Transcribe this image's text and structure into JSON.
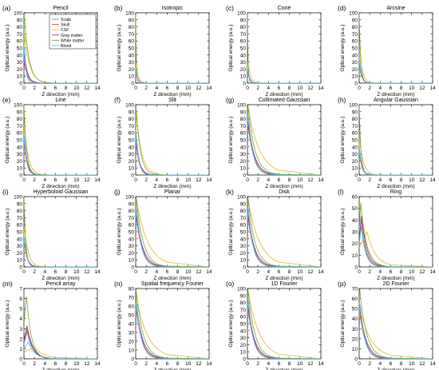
{
  "figure": {
    "x_axis_label": "Z direction (mm)",
    "y_axis_label": "Optical energy (a.u.)",
    "legend": [
      "Scalp",
      "Skull",
      "CSF",
      "Gray matter",
      "White matter",
      "Blood"
    ],
    "series_colors": [
      "#4d96d6",
      "#d95319",
      "#edb120",
      "#7e2f8e",
      "#77ac30",
      "#4dbeee"
    ]
  },
  "chart_data": [
    {
      "type": "line",
      "panel": "(a)",
      "title": "Pencil",
      "xlim": [
        0,
        14
      ],
      "ylim": [
        0,
        100
      ],
      "yticks": [
        0,
        10,
        20,
        30,
        40,
        50,
        60,
        70,
        80,
        90,
        100
      ],
      "xticks": [
        0,
        2,
        4,
        6,
        8,
        10,
        12,
        14
      ],
      "legend": "top-right",
      "series": [
        {
          "name": "Scalp",
          "peak": 48,
          "peak_x": 0.1,
          "decay": 0.45
        },
        {
          "name": "Skull",
          "peak": 30,
          "peak_x": 0.1,
          "decay": 0.55
        },
        {
          "name": "CSF",
          "peak": 70,
          "peak_x": 0.1,
          "decay": 1.0
        },
        {
          "name": "Gray matter",
          "peak": 40,
          "peak_x": 0.1,
          "decay": 0.6
        },
        {
          "name": "White matter",
          "peak": 98,
          "peak_x": 0.05,
          "decay": 0.9
        },
        {
          "name": "Blood",
          "peak": 55,
          "peak_x": 0.1,
          "decay": 0.3
        }
      ]
    },
    {
      "type": "line",
      "panel": "(b)",
      "title": "Isotropic",
      "xlim": [
        0,
        14
      ],
      "ylim": [
        0,
        100
      ],
      "yticks": [
        0,
        10,
        20,
        30,
        40,
        50,
        60,
        70,
        80,
        90,
        100
      ],
      "xticks": [
        0,
        2,
        4,
        6,
        8,
        10,
        12,
        14
      ],
      "series": [
        {
          "name": "Scalp",
          "peak": 20,
          "peak_x": 0.05,
          "decay": 0.35
        },
        {
          "name": "Skull",
          "peak": 15,
          "peak_x": 0.05,
          "decay": 0.35
        },
        {
          "name": "CSF",
          "peak": 30,
          "peak_x": 0.05,
          "decay": 0.45
        },
        {
          "name": "Gray matter",
          "peak": 18,
          "peak_x": 0.05,
          "decay": 0.35
        },
        {
          "name": "White matter",
          "peak": 100,
          "peak_x": 0.0,
          "decay": 0.12
        },
        {
          "name": "Blood",
          "peak": 20,
          "peak_x": 0.05,
          "decay": 0.3
        }
      ]
    },
    {
      "type": "line",
      "panel": "(c)",
      "title": "Cone",
      "xlim": [
        0,
        14
      ],
      "ylim": [
        0,
        100
      ],
      "yticks": [
        0,
        10,
        20,
        30,
        40,
        50,
        60,
        70,
        80,
        90,
        100
      ],
      "xticks": [
        0,
        2,
        4,
        6,
        8,
        10,
        12,
        14
      ],
      "series": [
        {
          "name": "Scalp",
          "peak": 22,
          "peak_x": 0.05,
          "decay": 0.35
        },
        {
          "name": "Skull",
          "peak": 18,
          "peak_x": 0.05,
          "decay": 0.35
        },
        {
          "name": "CSF",
          "peak": 32,
          "peak_x": 0.05,
          "decay": 0.5
        },
        {
          "name": "Gray matter",
          "peak": 20,
          "peak_x": 0.05,
          "decay": 0.35
        },
        {
          "name": "White matter",
          "peak": 100,
          "peak_x": 0.0,
          "decay": 0.13
        },
        {
          "name": "Blood",
          "peak": 22,
          "peak_x": 0.05,
          "decay": 0.3
        }
      ]
    },
    {
      "type": "line",
      "panel": "(d)",
      "title": "Arcsine",
      "xlim": [
        0,
        14
      ],
      "ylim": [
        0,
        100
      ],
      "yticks": [
        0,
        10,
        20,
        30,
        40,
        50,
        60,
        70,
        80,
        90,
        100
      ],
      "xticks": [
        0,
        2,
        4,
        6,
        8,
        10,
        12,
        14
      ],
      "series": [
        {
          "name": "Scalp",
          "peak": 35,
          "peak_x": 0.05,
          "decay": 0.4
        },
        {
          "name": "Skull",
          "peak": 25,
          "peak_x": 0.05,
          "decay": 0.45
        },
        {
          "name": "CSF",
          "peak": 45,
          "peak_x": 0.05,
          "decay": 0.6
        },
        {
          "name": "Gray matter",
          "peak": 30,
          "peak_x": 0.05,
          "decay": 0.45
        },
        {
          "name": "White matter",
          "peak": 100,
          "peak_x": 0.0,
          "decay": 0.3
        },
        {
          "name": "Blood",
          "peak": 35,
          "peak_x": 0.05,
          "decay": 0.35
        }
      ]
    },
    {
      "type": "line",
      "panel": "(e)",
      "title": "Line",
      "xlim": [
        0,
        14
      ],
      "ylim": [
        0,
        100
      ],
      "yticks": [
        0,
        10,
        20,
        30,
        40,
        50,
        60,
        70,
        80,
        90,
        100
      ],
      "xticks": [
        0,
        2,
        4,
        6,
        8,
        10,
        12,
        14
      ],
      "series": [
        {
          "name": "Scalp",
          "peak": 60,
          "peak_x": 0.05,
          "decay": 0.5
        },
        {
          "name": "Skull",
          "peak": 45,
          "peak_x": 0.05,
          "decay": 0.55
        },
        {
          "name": "CSF",
          "peak": 75,
          "peak_x": 0.05,
          "decay": 0.75
        },
        {
          "name": "Gray matter",
          "peak": 50,
          "peak_x": 0.05,
          "decay": 0.6
        },
        {
          "name": "White matter",
          "peak": 100,
          "peak_x": 0.0,
          "decay": 0.5
        },
        {
          "name": "Blood",
          "peak": 60,
          "peak_x": 0.05,
          "decay": 0.45
        }
      ]
    },
    {
      "type": "line",
      "panel": "(f)",
      "title": "Slit",
      "xlim": [
        0,
        14
      ],
      "ylim": [
        0,
        100
      ],
      "yticks": [
        0,
        10,
        20,
        30,
        40,
        50,
        60,
        70,
        80,
        90,
        100
      ],
      "xticks": [
        0,
        2,
        4,
        6,
        8,
        10,
        12,
        14
      ],
      "series": [
        {
          "name": "Scalp",
          "peak": 60,
          "peak_x": 0.1,
          "decay": 0.55
        },
        {
          "name": "Skull",
          "peak": 45,
          "peak_x": 0.1,
          "decay": 0.6
        },
        {
          "name": "CSF",
          "peak": 90,
          "peak_x": 0.1,
          "decay": 1.0
        },
        {
          "name": "Gray matter",
          "peak": 50,
          "peak_x": 0.1,
          "decay": 0.65
        },
        {
          "name": "White matter",
          "peak": 100,
          "peak_x": 0.05,
          "decay": 0.8
        },
        {
          "name": "Blood",
          "peak": 60,
          "peak_x": 0.1,
          "decay": 0.5
        }
      ]
    },
    {
      "type": "line",
      "panel": "(g)",
      "title": "Collimated Gaussian",
      "xlim": [
        0,
        14
      ],
      "ylim": [
        0,
        100
      ],
      "yticks": [
        0,
        10,
        20,
        30,
        40,
        50,
        60,
        70,
        80,
        90,
        100
      ],
      "xticks": [
        0,
        2,
        4,
        6,
        8,
        10,
        12,
        14
      ],
      "series": [
        {
          "name": "Scalp",
          "peak": 85,
          "peak_x": 0.15,
          "decay": 1.0
        },
        {
          "name": "Skull",
          "peak": 70,
          "peak_x": 0.15,
          "decay": 1.1
        },
        {
          "name": "CSF",
          "peak": 95,
          "peak_x": 0.15,
          "decay": 2.2
        },
        {
          "name": "Gray matter",
          "peak": 75,
          "peak_x": 0.15,
          "decay": 1.2
        },
        {
          "name": "White matter",
          "peak": 100,
          "peak_x": 0.1,
          "decay": 1.3
        },
        {
          "name": "Blood",
          "peak": 85,
          "peak_x": 0.15,
          "decay": 0.9
        }
      ]
    },
    {
      "type": "line",
      "panel": "(h)",
      "title": "Angular Gaussian",
      "xlim": [
        0,
        14
      ],
      "ylim": [
        0,
        100
      ],
      "yticks": [
        0,
        10,
        20,
        30,
        40,
        50,
        60,
        70,
        80,
        90,
        100
      ],
      "xticks": [
        0,
        2,
        4,
        6,
        8,
        10,
        12,
        14
      ],
      "series": [
        {
          "name": "Scalp",
          "peak": 40,
          "peak_x": 0.05,
          "decay": 0.45
        },
        {
          "name": "Skull",
          "peak": 30,
          "peak_x": 0.05,
          "decay": 0.5
        },
        {
          "name": "CSF",
          "peak": 55,
          "peak_x": 0.05,
          "decay": 0.7
        },
        {
          "name": "Gray matter",
          "peak": 35,
          "peak_x": 0.05,
          "decay": 0.5
        },
        {
          "name": "White matter",
          "peak": 100,
          "peak_x": 0.0,
          "decay": 0.35
        },
        {
          "name": "Blood",
          "peak": 40,
          "peak_x": 0.05,
          "decay": 0.4
        }
      ]
    },
    {
      "type": "line",
      "panel": "(i)",
      "title": "Hyperboloid Gaussian",
      "xlim": [
        0,
        14
      ],
      "ylim": [
        0,
        100
      ],
      "yticks": [
        0,
        10,
        20,
        30,
        40,
        50,
        60,
        70,
        80,
        90,
        100
      ],
      "xticks": [
        0,
        2,
        4,
        6,
        8,
        10,
        12,
        14
      ],
      "series": [
        {
          "name": "Scalp",
          "peak": 45,
          "peak_x": 0.05,
          "decay": 0.5
        },
        {
          "name": "Skull",
          "peak": 35,
          "peak_x": 0.05,
          "decay": 0.55
        },
        {
          "name": "CSF",
          "peak": 60,
          "peak_x": 0.05,
          "decay": 0.75
        },
        {
          "name": "Gray matter",
          "peak": 40,
          "peak_x": 0.05,
          "decay": 0.55
        },
        {
          "name": "White matter",
          "peak": 100,
          "peak_x": 0.0,
          "decay": 0.35
        },
        {
          "name": "Blood",
          "peak": 45,
          "peak_x": 0.05,
          "decay": 0.45
        }
      ]
    },
    {
      "type": "line",
      "panel": "(j)",
      "title": "Planar",
      "xlim": [
        0,
        14
      ],
      "ylim": [
        0,
        100
      ],
      "yticks": [
        0,
        10,
        20,
        30,
        40,
        50,
        60,
        70,
        80,
        90,
        100
      ],
      "xticks": [
        0,
        2,
        4,
        6,
        8,
        10,
        12,
        14
      ],
      "series": [
        {
          "name": "Scalp",
          "peak": 85,
          "peak_x": 0.15,
          "decay": 1.0
        },
        {
          "name": "Skull",
          "peak": 70,
          "peak_x": 0.15,
          "decay": 1.1
        },
        {
          "name": "CSF",
          "peak": 95,
          "peak_x": 0.15,
          "decay": 2.2
        },
        {
          "name": "Gray matter",
          "peak": 75,
          "peak_x": 0.15,
          "decay": 1.2
        },
        {
          "name": "White matter",
          "peak": 100,
          "peak_x": 0.1,
          "decay": 1.3
        },
        {
          "name": "Blood",
          "peak": 85,
          "peak_x": 0.15,
          "decay": 0.9
        }
      ]
    },
    {
      "type": "line",
      "panel": "(k)",
      "title": "Disk",
      "xlim": [
        0,
        14
      ],
      "ylim": [
        0,
        100
      ],
      "yticks": [
        0,
        10,
        20,
        30,
        40,
        50,
        60,
        70,
        80,
        90,
        100
      ],
      "xticks": [
        0,
        2,
        4,
        6,
        8,
        10,
        12,
        14
      ],
      "series": [
        {
          "name": "Scalp",
          "peak": 85,
          "peak_x": 0.15,
          "decay": 1.0
        },
        {
          "name": "Skull",
          "peak": 70,
          "peak_x": 0.15,
          "decay": 1.1
        },
        {
          "name": "CSF",
          "peak": 95,
          "peak_x": 0.15,
          "decay": 2.2
        },
        {
          "name": "Gray matter",
          "peak": 75,
          "peak_x": 0.15,
          "decay": 1.2
        },
        {
          "name": "White matter",
          "peak": 100,
          "peak_x": 0.1,
          "decay": 1.3
        },
        {
          "name": "Blood",
          "peak": 85,
          "peak_x": 0.15,
          "decay": 0.9
        }
      ]
    },
    {
      "type": "line",
      "panel": "(l)",
      "title": "Ring",
      "xlim": [
        0,
        14
      ],
      "ylim": [
        0,
        60
      ],
      "yticks": [
        0,
        10,
        20,
        30,
        40,
        50,
        60
      ],
      "xticks": [
        0,
        2,
        4,
        6,
        8,
        10,
        12,
        14
      ],
      "series": [
        {
          "name": "Scalp",
          "peak": 35,
          "peak_x": 0.4,
          "decay": 0.9
        },
        {
          "name": "Skull",
          "peak": 40,
          "peak_x": 0.4,
          "decay": 0.9
        },
        {
          "name": "CSF",
          "peak": 30,
          "peak_x": 1.5,
          "decay": 1.6
        },
        {
          "name": "Gray matter",
          "peak": 44,
          "peak_x": 0.45,
          "decay": 1.0
        },
        {
          "name": "White matter",
          "peak": 55,
          "peak_x": 0.3,
          "decay": 1.1
        },
        {
          "name": "Blood",
          "peak": 35,
          "peak_x": 0.4,
          "decay": 0.8
        }
      ]
    },
    {
      "type": "line",
      "panel": "(m)",
      "title": "Pencil array",
      "xlim": [
        0,
        14
      ],
      "ylim": [
        0,
        7
      ],
      "yticks": [
        0,
        1,
        2,
        3,
        4,
        5,
        6,
        7
      ],
      "xticks": [
        0,
        2,
        4,
        6,
        8,
        10,
        12,
        14
      ],
      "series": [
        {
          "name": "Scalp",
          "peak": 2.7,
          "peak_x": 0.6,
          "decay": 1.1
        },
        {
          "name": "Skull",
          "peak": 3.0,
          "peak_x": 0.6,
          "decay": 1.1
        },
        {
          "name": "CSF",
          "peak": 1.2,
          "peak_x": 2.0,
          "decay": 1.8
        },
        {
          "name": "Gray matter",
          "peak": 3.3,
          "peak_x": 0.6,
          "decay": 1.1
        },
        {
          "name": "White matter",
          "peak": 6.3,
          "peak_x": 0.5,
          "decay": 0.9
        },
        {
          "name": "Blood",
          "peak": 1.7,
          "peak_x": 0.8,
          "decay": 1.2
        }
      ]
    },
    {
      "type": "line",
      "panel": "(n)",
      "title": "Spatial frequency Fourier",
      "xlim": [
        0,
        14
      ],
      "ylim": [
        0,
        80
      ],
      "yticks": [
        0,
        10,
        20,
        30,
        40,
        50,
        60,
        70,
        80
      ],
      "xticks": [
        0,
        2,
        4,
        6,
        8,
        10,
        12,
        14
      ],
      "series": [
        {
          "name": "Scalp",
          "peak": 65,
          "peak_x": 0.15,
          "decay": 1.0
        },
        {
          "name": "Skull",
          "peak": 55,
          "peak_x": 0.15,
          "decay": 1.1
        },
        {
          "name": "CSF",
          "peak": 70,
          "peak_x": 0.15,
          "decay": 2.2
        },
        {
          "name": "Gray matter",
          "peak": 60,
          "peak_x": 0.15,
          "decay": 1.2
        },
        {
          "name": "White matter",
          "peak": 78,
          "peak_x": 0.1,
          "decay": 1.3
        },
        {
          "name": "Blood",
          "peak": 65,
          "peak_x": 0.15,
          "decay": 0.9
        }
      ]
    },
    {
      "type": "line",
      "panel": "(o)",
      "title": "1D Fourier",
      "xlim": [
        0,
        14
      ],
      "ylim": [
        0,
        100
      ],
      "yticks": [
        0,
        10,
        20,
        30,
        40,
        50,
        60,
        70,
        80,
        90,
        100
      ],
      "xticks": [
        0,
        2,
        4,
        6,
        8,
        10,
        12,
        14
      ],
      "series": [
        {
          "name": "Scalp",
          "peak": 85,
          "peak_x": 0.15,
          "decay": 1.0
        },
        {
          "name": "Skull",
          "peak": 70,
          "peak_x": 0.15,
          "decay": 1.1
        },
        {
          "name": "CSF",
          "peak": 95,
          "peak_x": 0.15,
          "decay": 2.2
        },
        {
          "name": "Gray matter",
          "peak": 75,
          "peak_x": 0.15,
          "decay": 1.2
        },
        {
          "name": "White matter",
          "peak": 100,
          "peak_x": 0.1,
          "decay": 1.3
        },
        {
          "name": "Blood",
          "peak": 85,
          "peak_x": 0.15,
          "decay": 0.9
        }
      ]
    },
    {
      "type": "line",
      "panel": "(p)",
      "title": "2D Fourier",
      "xlim": [
        0,
        14
      ],
      "ylim": [
        0,
        70
      ],
      "yticks": [
        0,
        10,
        20,
        30,
        40,
        50,
        60,
        70
      ],
      "xticks": [
        0,
        2,
        4,
        6,
        8,
        10,
        12,
        14
      ],
      "series": [
        {
          "name": "Scalp",
          "peak": 55,
          "peak_x": 0.15,
          "decay": 1.0
        },
        {
          "name": "Skull",
          "peak": 45,
          "peak_x": 0.15,
          "decay": 1.1
        },
        {
          "name": "CSF",
          "peak": 50,
          "peak_x": 0.15,
          "decay": 2.2
        },
        {
          "name": "Gray matter",
          "peak": 50,
          "peak_x": 0.15,
          "decay": 1.2
        },
        {
          "name": "White matter",
          "peak": 70,
          "peak_x": 0.1,
          "decay": 1.3
        },
        {
          "name": "Blood",
          "peak": 55,
          "peak_x": 0.15,
          "decay": 0.9
        }
      ]
    }
  ]
}
